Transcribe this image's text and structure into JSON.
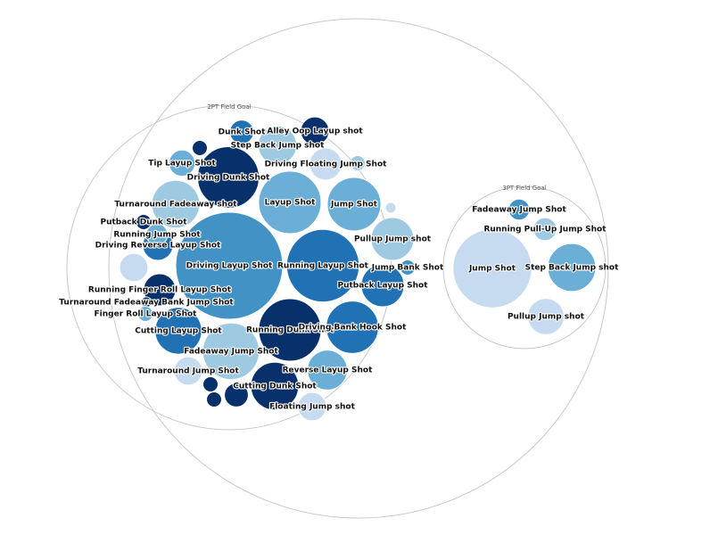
{
  "chart_data": {
    "type": "packed-bubble",
    "groups": [
      {
        "name": "2PT Field Goal",
        "items": [
          {
            "label": "Driving Layup Shot",
            "value": 100,
            "shade": 3
          },
          {
            "label": "Running Layup Shot",
            "value": 46,
            "shade": 4
          },
          {
            "label": "Running Dunk Shot",
            "value": 34,
            "shade": 5
          },
          {
            "label": "Driving Dunk Shot",
            "value": 33,
            "shade": 5
          },
          {
            "label": "Layup Shot",
            "value": 34,
            "shade": 2
          },
          {
            "label": "Driving Bank Hook Shot",
            "value": 24,
            "shade": 4
          },
          {
            "label": "Fadeaway Jump Shot",
            "value": 28,
            "shade": 1
          },
          {
            "label": "Jump Shot",
            "value": 25,
            "shade": 2
          },
          {
            "label": "Turnaround Fadeaway shot",
            "value": 20,
            "shade": 1
          },
          {
            "label": "Cutting Layup Shot",
            "value": 19,
            "shade": 4
          },
          {
            "label": "Cutting Dunk Shot",
            "value": 20,
            "shade": 5
          },
          {
            "label": "Pullup Jump shot",
            "value": 16,
            "shade": 1
          },
          {
            "label": "Putback Layup Shot",
            "value": 16,
            "shade": 4
          },
          {
            "label": "Reverse Layup Shot",
            "value": 14,
            "shade": 2
          },
          {
            "label": "Step Back Jump shot",
            "value": 13,
            "shade": 1
          },
          {
            "label": "Driving Floating Jump Shot",
            "value": 9,
            "shade": 0
          },
          {
            "label": "Turnaround Jump Shot",
            "value": 7,
            "shade": 0
          },
          {
            "label": "Running Finger Roll Layup Shot",
            "value": 9,
            "shade": 5
          },
          {
            "label": "Alley Oop Layup shot",
            "value": 7,
            "shade": 5
          },
          {
            "label": "Tip Layup Shot",
            "value": 6,
            "shade": 2
          },
          {
            "label": "Driving Reverse Layup Shot",
            "value": 8,
            "shade": 4
          },
          {
            "label": "Floating Jump shot",
            "value": 7,
            "shade": 0
          },
          {
            "label": "Dunk Shot",
            "value": 5,
            "shade": 4
          },
          {
            "label": "Running Jump Shot",
            "value": 4,
            "shade": 2
          },
          {
            "label": "Putback Dunk Shot",
            "value": 2,
            "shade": 5
          },
          {
            "label": "Jump Bank Shot",
            "value": 2,
            "shade": 3
          },
          {
            "label": "Turnaround Fadeaway Bank Jump Shot",
            "value": 1,
            "shade": 5
          },
          {
            "label": "Finger Roll Layup Shot",
            "value": 2,
            "shade": 2
          },
          {
            "label": "",
            "value": 7,
            "shade": 0
          },
          {
            "label": "",
            "value": 5,
            "shade": 5
          },
          {
            "label": "",
            "value": 2,
            "shade": 5
          },
          {
            "label": "",
            "value": 2,
            "shade": 5
          },
          {
            "label": "",
            "value": 2,
            "shade": 5
          },
          {
            "label": "",
            "value": 2,
            "shade": 1
          },
          {
            "label": "",
            "value": 1,
            "shade": 0
          }
        ]
      },
      {
        "name": "3PT Field Goal",
        "items": [
          {
            "label": "Jump Shot",
            "value": 70,
            "shade": 0
          },
          {
            "label": "Step Back Jump shot",
            "value": 26,
            "shade": 2
          },
          {
            "label": "Pullup Jump shot",
            "value": 15,
            "shade": 0
          },
          {
            "label": "Running Pull-Up Jump Shot",
            "value": 6,
            "shade": 1
          },
          {
            "label": "Fadeaway Jump Shot",
            "value": 5,
            "shade": 3
          }
        ]
      }
    ],
    "palette": [
      "#c6dbef",
      "#9ecae1",
      "#6baed6",
      "#4292c6",
      "#2171b5",
      "#08306b"
    ],
    "title": "",
    "xlabel": "",
    "ylabel": "",
    "grid": false,
    "legend": "none"
  }
}
